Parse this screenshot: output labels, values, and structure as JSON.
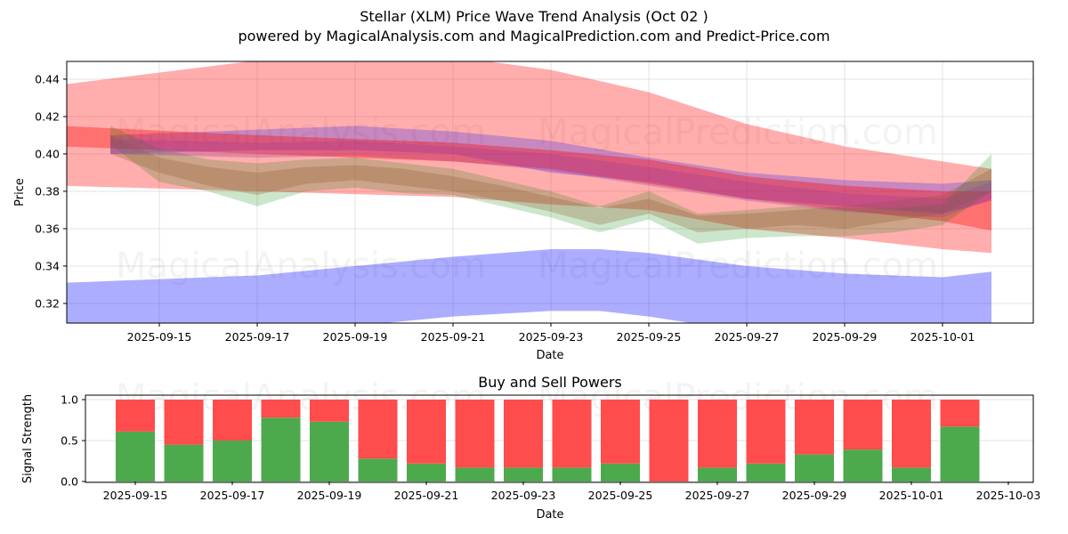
{
  "header": {
    "title": "Stellar (XLM) Price Wave Trend Analysis (Oct 02 )",
    "subtitle": "powered by MagicalAnalysis.com and MagicalPrediction.com and Predict-Price.com"
  },
  "watermarks": [
    "MagicalAnalysis.com",
    "MagicalPrediction.com"
  ],
  "colors": {
    "red_band": "#ff0000",
    "blue_band": "#0000ff",
    "green_band": "#008000",
    "buy": "#4caa4c",
    "sell": "#ff4c4c",
    "grid": "#b0b0b0"
  },
  "chart_data": [
    {
      "type": "area",
      "title": "",
      "xlabel": "Date",
      "ylabel": "Price",
      "ylim": [
        0.3095,
        0.4495
      ],
      "xlim": [
        "2025-09-13",
        "2025-10-02"
      ],
      "grid": true,
      "x_ticks": [
        "2025-09-15",
        "2025-09-17",
        "2025-09-19",
        "2025-09-21",
        "2025-09-23",
        "2025-09-25",
        "2025-09-27",
        "2025-09-29",
        "2025-10-01"
      ],
      "y_ticks": [
        "0.32",
        "0.34",
        "0.36",
        "0.38",
        "0.40",
        "0.42",
        "0.44"
      ],
      "bands": [
        {
          "name": "outer-red-band",
          "color": "red",
          "opacity": 0.32,
          "x": [
            "2025-09-13",
            "2025-09-17",
            "2025-09-21",
            "2025-09-23",
            "2025-09-25",
            "2025-09-27",
            "2025-09-29",
            "2025-10-01",
            "2025-10-02"
          ],
          "upper": [
            0.437,
            0.45,
            0.452,
            0.445,
            0.433,
            0.416,
            0.404,
            0.396,
            0.392
          ],
          "lower": [
            0.383,
            0.38,
            0.377,
            0.373,
            0.37,
            0.36,
            0.355,
            0.349,
            0.347
          ]
        },
        {
          "name": "lower-blue-band",
          "color": "blue",
          "opacity": 0.32,
          "x": [
            "2025-09-13",
            "2025-09-17",
            "2025-09-19",
            "2025-09-21",
            "2025-09-23",
            "2025-09-24",
            "2025-09-25",
            "2025-09-27",
            "2025-09-29",
            "2025-10-01",
            "2025-10-02"
          ],
          "upper": [
            0.331,
            0.335,
            0.34,
            0.345,
            0.349,
            0.349,
            0.347,
            0.34,
            0.336,
            0.334,
            0.337
          ],
          "lower": [
            0.308,
            0.306,
            0.308,
            0.313,
            0.316,
            0.316,
            0.313,
            0.305,
            0.3,
            0.297,
            0.298
          ]
        },
        {
          "name": "upper-blue-band",
          "color": "blue",
          "opacity": 0.22,
          "x": [
            "2025-09-14",
            "2025-09-17",
            "2025-09-19",
            "2025-09-21",
            "2025-09-23",
            "2025-09-25",
            "2025-09-27",
            "2025-09-29",
            "2025-10-01",
            "2025-10-02"
          ],
          "upper": [
            0.41,
            0.413,
            0.415,
            0.412,
            0.407,
            0.398,
            0.39,
            0.386,
            0.384,
            0.386
          ],
          "lower": [
            0.4,
            0.402,
            0.402,
            0.4,
            0.39,
            0.385,
            0.376,
            0.372,
            0.368,
            0.375
          ]
        },
        {
          "name": "inner-red-band",
          "color": "red",
          "opacity": 0.35,
          "x": [
            "2025-09-13",
            "2025-09-17",
            "2025-09-21",
            "2025-09-23",
            "2025-09-25",
            "2025-09-27",
            "2025-09-29",
            "2025-10-01",
            "2025-10-02"
          ],
          "upper": [
            0.415,
            0.41,
            0.406,
            0.402,
            0.397,
            0.388,
            0.383,
            0.38,
            0.38
          ],
          "lower": [
            0.404,
            0.4,
            0.396,
            0.392,
            0.384,
            0.376,
            0.37,
            0.364,
            0.359
          ]
        },
        {
          "name": "green-wave-band",
          "color": "green",
          "opacity": 0.2,
          "x": [
            "2025-09-14",
            "2025-09-15",
            "2025-09-16",
            "2025-09-17",
            "2025-09-18",
            "2025-09-19",
            "2025-09-20",
            "2025-09-21",
            "2025-09-22",
            "2025-09-23",
            "2025-09-24",
            "2025-09-25",
            "2025-09-26",
            "2025-09-27",
            "2025-09-28",
            "2025-09-29",
            "2025-09-30",
            "2025-10-01",
            "2025-10-02"
          ],
          "upper": [
            0.415,
            0.403,
            0.397,
            0.395,
            0.397,
            0.398,
            0.395,
            0.392,
            0.386,
            0.38,
            0.372,
            0.38,
            0.368,
            0.37,
            0.372,
            0.371,
            0.371,
            0.373,
            0.4
          ],
          "lower": [
            0.405,
            0.385,
            0.38,
            0.372,
            0.38,
            0.382,
            0.379,
            0.378,
            0.372,
            0.366,
            0.358,
            0.365,
            0.352,
            0.355,
            0.356,
            0.356,
            0.358,
            0.362,
            0.38
          ]
        },
        {
          "name": "brown-mixed-band",
          "color": "#8b5a2b",
          "opacity": 0.28,
          "x": [
            "2025-09-14",
            "2025-09-15",
            "2025-09-16",
            "2025-09-17",
            "2025-09-18",
            "2025-09-19",
            "2025-09-20",
            "2025-09-21",
            "2025-09-22",
            "2025-09-23",
            "2025-09-24",
            "2025-09-25",
            "2025-09-26",
            "2025-09-27",
            "2025-09-28",
            "2025-09-29",
            "2025-09-30",
            "2025-10-01",
            "2025-10-02"
          ],
          "upper": [
            0.41,
            0.398,
            0.393,
            0.39,
            0.393,
            0.394,
            0.392,
            0.388,
            0.383,
            0.377,
            0.371,
            0.376,
            0.367,
            0.368,
            0.37,
            0.372,
            0.375,
            0.378,
            0.392
          ],
          "lower": [
            0.4,
            0.39,
            0.383,
            0.378,
            0.384,
            0.386,
            0.383,
            0.38,
            0.375,
            0.369,
            0.362,
            0.368,
            0.358,
            0.36,
            0.362,
            0.36,
            0.364,
            0.368,
            0.38
          ]
        },
        {
          "name": "purple-mixed-band",
          "color": "#9b3d9b",
          "opacity": 0.3,
          "x": [
            "2025-09-14",
            "2025-09-17",
            "2025-09-19",
            "2025-09-21",
            "2025-09-23",
            "2025-09-25",
            "2025-09-27",
            "2025-09-29",
            "2025-10-01",
            "2025-10-02"
          ],
          "upper": [
            0.408,
            0.406,
            0.407,
            0.404,
            0.4,
            0.393,
            0.385,
            0.379,
            0.376,
            0.385
          ],
          "lower": [
            0.4,
            0.398,
            0.399,
            0.396,
            0.391,
            0.383,
            0.375,
            0.369,
            0.366,
            0.376
          ]
        }
      ]
    },
    {
      "type": "bar",
      "title": "Buy and Sell Powers",
      "xlabel": "Date",
      "ylabel": "Signal Strength",
      "ylim": [
        0,
        1.05
      ],
      "grid": true,
      "x_ticks": [
        "2025-09-15",
        "2025-09-17",
        "2025-09-19",
        "2025-09-21",
        "2025-09-23",
        "2025-09-25",
        "2025-09-27",
        "2025-09-29",
        "2025-10-01",
        "2025-10-03"
      ],
      "y_ticks": [
        "0.0",
        "0.5",
        "1.0"
      ],
      "categories": [
        "2025-09-15",
        "2025-09-16",
        "2025-09-17",
        "2025-09-18",
        "2025-09-19",
        "2025-09-20",
        "2025-09-21",
        "2025-09-22",
        "2025-09-23",
        "2025-09-24",
        "2025-09-25",
        "2025-09-26",
        "2025-09-27",
        "2025-09-28",
        "2025-09-29",
        "2025-09-30",
        "2025-10-01",
        "2025-10-02"
      ],
      "series": [
        {
          "name": "Buy",
          "color": "green",
          "values": [
            0.61,
            0.45,
            0.5,
            0.78,
            0.73,
            0.28,
            0.22,
            0.17,
            0.17,
            0.17,
            0.22,
            0.0,
            0.17,
            0.22,
            0.33,
            0.39,
            0.17,
            0.67
          ]
        },
        {
          "name": "Sell",
          "color": "red",
          "values": [
            0.39,
            0.55,
            0.5,
            0.22,
            0.27,
            0.72,
            0.78,
            0.83,
            0.83,
            0.83,
            0.78,
            1.0,
            0.83,
            0.78,
            0.67,
            0.61,
            0.83,
            0.33
          ]
        }
      ]
    }
  ]
}
